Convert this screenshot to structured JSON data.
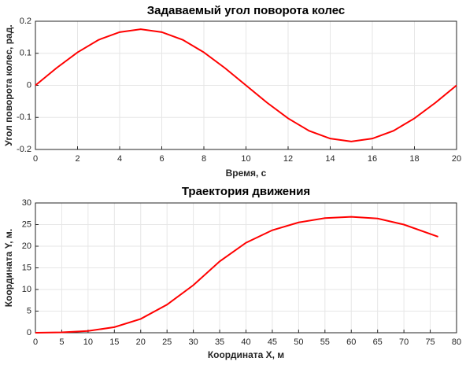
{
  "chart_data": [
    {
      "type": "line",
      "title": "Задаваемый угол поворота колес",
      "x_label": "Время, с",
      "y_label": "Угол поворота колес, рад.",
      "x": [
        0,
        1,
        2,
        3,
        4,
        5,
        6,
        7,
        8,
        9,
        10,
        11,
        12,
        13,
        14,
        15,
        16,
        17,
        18,
        19,
        20
      ],
      "series": [
        {
          "color": "#ff0000",
          "values": [
            0,
            0.054,
            0.103,
            0.142,
            0.166,
            0.175,
            0.166,
            0.142,
            0.103,
            0.054,
            0,
            -0.054,
            -0.103,
            -0.142,
            -0.166,
            -0.175,
            -0.166,
            -0.142,
            -0.103,
            -0.054,
            0
          ]
        }
      ],
      "xlim": [
        0,
        20
      ],
      "xticks": [
        0,
        2,
        4,
        6,
        8,
        10,
        12,
        14,
        16,
        18,
        20
      ],
      "ylim": [
        -0.2,
        0.2
      ],
      "yticks": [
        -0.2,
        -0.1,
        0,
        0.1,
        0.2
      ],
      "grid": true
    },
    {
      "type": "line",
      "title": "Траектория движения",
      "x_label": "Координата X, м",
      "y_label": "Координата Y, м.",
      "x": [
        0,
        5,
        10,
        15,
        20,
        25,
        30,
        35,
        40,
        45,
        50,
        55,
        60,
        65,
        70,
        76.5
      ],
      "series": [
        {
          "color": "#ff0000",
          "values": [
            0,
            0.1,
            0.4,
            1.3,
            3.2,
            6.5,
            11,
            16.5,
            20.8,
            23.7,
            25.5,
            26.5,
            26.8,
            26.4,
            25,
            22.2
          ]
        }
      ],
      "xlim": [
        0,
        80
      ],
      "xticks": [
        0,
        5,
        10,
        15,
        20,
        25,
        30,
        35,
        40,
        45,
        50,
        55,
        60,
        65,
        70,
        75,
        80
      ],
      "ylim": [
        0,
        30
      ],
      "yticks": [
        0,
        5,
        10,
        15,
        20,
        25,
        30
      ],
      "grid": true
    }
  ]
}
